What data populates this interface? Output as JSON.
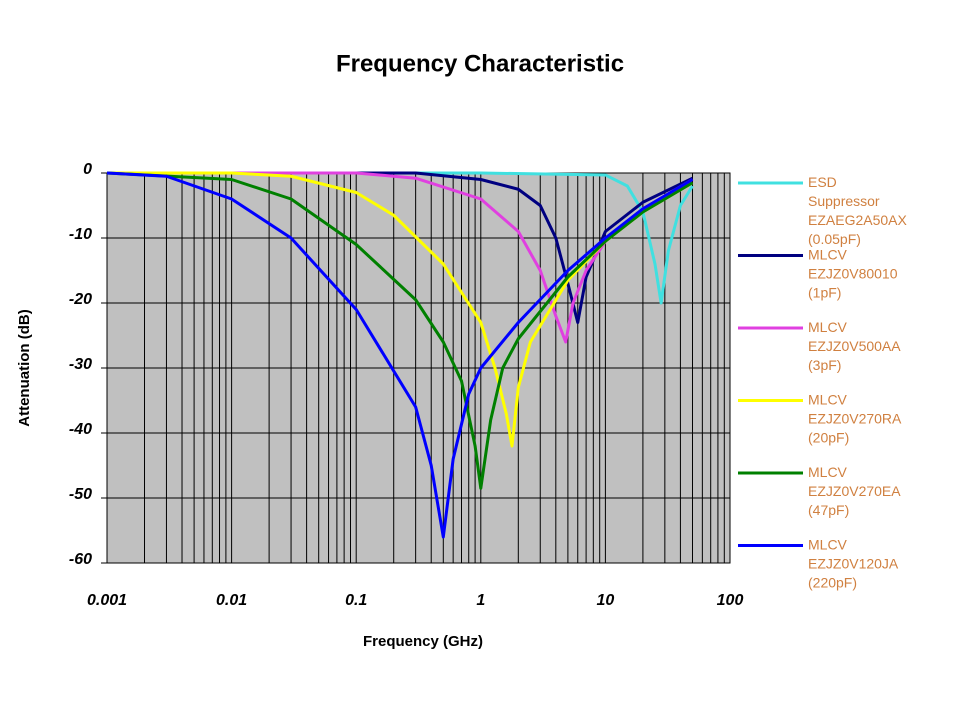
{
  "chart_data": {
    "type": "line",
    "title": "Frequency Characteristic",
    "x_label": "Frequency (GHz)",
    "y_label": "Attenuation (dB)",
    "x_scale": "log",
    "xlim": [
      0.001,
      100
    ],
    "xticks": [
      0.001,
      0.01,
      0.1,
      1,
      10,
      100
    ],
    "ylim": [
      -60,
      0
    ],
    "yticks": [
      0,
      -10,
      -20,
      -30,
      -40,
      -50,
      -60
    ],
    "grid": true,
    "legend": "right",
    "series": [
      {
        "name": "ESD Suppressor EZAEG2A50AX (0.05pF)",
        "color": "#40e0e0",
        "x": [
          0.001,
          0.1,
          1,
          10,
          15,
          20,
          25,
          28,
          32,
          40,
          50
        ],
        "values": [
          0,
          0,
          0,
          -0.3,
          -2,
          -6,
          -14,
          -20,
          -12,
          -5,
          -2
        ]
      },
      {
        "name": "MLCV EZJZ0V80010 (1pF)",
        "color": "#000080",
        "x": [
          0.001,
          0.1,
          0.3,
          1,
          2,
          3,
          4,
          5,
          6,
          7,
          10,
          20,
          50
        ],
        "values": [
          0,
          0,
          0,
          -1,
          -2.5,
          -5,
          -10,
          -17,
          -23,
          -16,
          -9,
          -4.5,
          -0.8
        ]
      },
      {
        "name": "MLCV EZJZ0V500AA (3pF)",
        "color": "#e040e0",
        "x": [
          0.001,
          0.1,
          0.3,
          1,
          2,
          3,
          4,
          4.8,
          5.5,
          7,
          10,
          20,
          50
        ],
        "values": [
          0,
          0,
          -0.8,
          -4,
          -9,
          -15,
          -22,
          -26,
          -20,
          -15,
          -10.5,
          -5.5,
          -1
        ]
      },
      {
        "name": "MLCV EZJZ0V270RA (20pF)",
        "color": "#ffff00",
        "x": [
          0.001,
          0.01,
          0.03,
          0.1,
          0.2,
          0.5,
          1,
          1.3,
          1.6,
          1.78,
          2,
          2.5,
          5,
          10,
          20,
          50
        ],
        "values": [
          0,
          0,
          -0.5,
          -3,
          -6.5,
          -14,
          -23,
          -30,
          -37,
          -42,
          -33,
          -26,
          -16.5,
          -10.5,
          -6,
          -1.5
        ]
      },
      {
        "name": "MLCV EZJZ0V270EA (47pF)",
        "color": "#008000",
        "x": [
          0.001,
          0.01,
          0.03,
          0.1,
          0.3,
          0.5,
          0.7,
          0.9,
          1,
          1.2,
          1.5,
          2,
          5,
          10,
          20,
          50
        ],
        "values": [
          0,
          -1,
          -4,
          -11,
          -19.5,
          -26,
          -32,
          -42,
          -48.5,
          -38,
          -30,
          -25.5,
          -16,
          -10.5,
          -6,
          -1.5
        ]
      },
      {
        "name": "MLCV EZJZ0V120JA (220pF)",
        "color": "#0000ff",
        "x": [
          0.001,
          0.003,
          0.01,
          0.03,
          0.1,
          0.3,
          0.4,
          0.5,
          0.6,
          0.8,
          1,
          2,
          5,
          10,
          20,
          50
        ],
        "values": [
          0,
          -0.5,
          -4,
          -10,
          -21,
          -36,
          -45,
          -56,
          -44,
          -34,
          -30,
          -23,
          -15,
          -10,
          -5.5,
          -1
        ]
      }
    ]
  }
}
